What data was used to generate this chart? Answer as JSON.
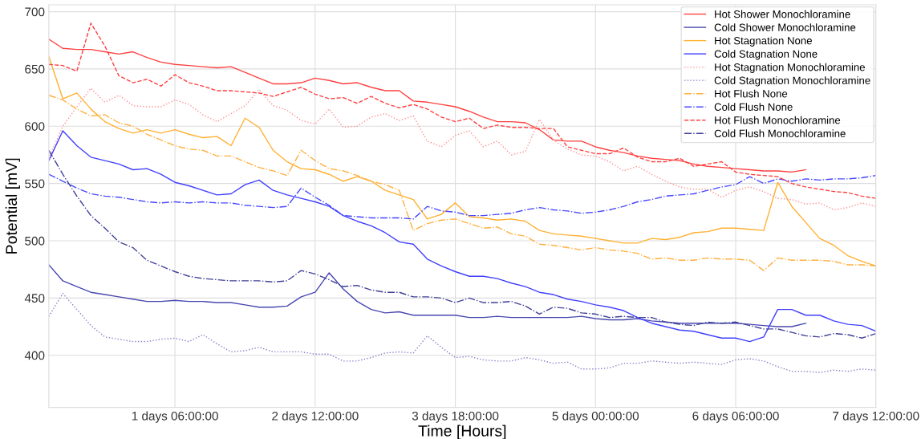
{
  "chart_data": {
    "type": "line",
    "xlabel": "Time [Hours]",
    "ylabel": "Potential [mV]",
    "categories": [
      null,
      null,
      null,
      null,
      null,
      null,
      null,
      null,
      null,
      "1 days 06:00:00",
      null,
      null,
      null,
      null,
      null,
      null,
      null,
      null,
      null,
      "2 days 12:00:00",
      null,
      null,
      null,
      null,
      null,
      null,
      null,
      null,
      null,
      "3 days 18:00:00",
      null,
      null,
      null,
      null,
      null,
      null,
      null,
      null,
      null,
      "5 days 00:00:00",
      null,
      null,
      null,
      null,
      null,
      null,
      null,
      null,
      null,
      "6 days 06:00:00",
      null,
      null,
      null,
      null,
      null,
      null,
      null,
      null,
      null,
      "7 days 12:00:00"
    ],
    "ylim": [
      354.5,
      706
    ],
    "yticks": [
      400,
      450,
      500,
      550,
      600,
      650,
      700
    ],
    "grid": true,
    "legend": "top right",
    "marker": "none",
    "series": [
      {
        "name": "Hot Shower Monochloramine",
        "color": "#ff4040",
        "line_style": "solid",
        "values": [
          676,
          668,
          667,
          667,
          665,
          663,
          665,
          660,
          656,
          654,
          653,
          652,
          651,
          652,
          647,
          642,
          637,
          637,
          638,
          642,
          640,
          637,
          638,
          634,
          631,
          631,
          622,
          621,
          619,
          617,
          613,
          608,
          604,
          604,
          603,
          597,
          588,
          587,
          587,
          582,
          579,
          577,
          574,
          572,
          571,
          570,
          567,
          565,
          564,
          563,
          562,
          561,
          561,
          560,
          562,
          null,
          null,
          null,
          null,
          null
        ]
      },
      {
        "name": "Cold Shower Monochloramine",
        "color": "#4848b0",
        "line_style": "solid",
        "values": [
          479,
          465,
          460,
          455,
          453,
          451,
          449,
          447,
          447,
          448,
          447,
          447,
          446,
          446,
          444,
          442,
          442,
          443,
          451,
          455,
          472,
          458,
          447,
          440,
          437,
          438,
          435,
          435,
          435,
          435,
          433,
          433,
          434,
          433,
          433,
          433,
          433,
          433,
          434,
          432,
          431,
          431,
          432,
          430,
          429,
          428,
          428,
          428,
          428,
          428,
          427,
          426,
          425,
          425,
          428,
          null,
          null,
          null,
          null,
          null
        ]
      },
      {
        "name": "Hot Stagnation None",
        "color": "#ffb030",
        "line_style": "solid",
        "values": [
          661,
          624,
          629,
          615,
          604,
          598,
          594,
          597,
          594,
          597,
          593,
          590,
          591,
          583,
          607,
          599,
          579,
          569,
          563,
          562,
          558,
          552,
          556,
          552,
          544,
          540,
          536,
          519,
          523,
          533,
          521,
          520,
          518,
          519,
          517,
          509,
          506,
          505,
          504,
          502,
          500,
          498,
          498,
          502,
          501,
          503,
          507,
          508,
          511,
          511,
          510,
          509,
          551,
          530,
          516,
          502,
          496,
          487,
          482,
          478
        ]
      },
      {
        "name": "Cold Stagnation None",
        "color": "#4040ff",
        "line_style": "solid",
        "values": [
          570,
          596,
          583,
          573,
          570,
          567,
          562,
          563,
          558,
          551,
          548,
          544,
          540,
          541,
          549,
          553,
          544,
          540,
          537,
          534,
          530,
          522,
          517,
          513,
          507,
          499,
          497,
          484,
          478,
          473,
          469,
          469,
          467,
          463,
          460,
          455,
          453,
          449,
          447,
          444,
          442,
          439,
          433,
          428,
          425,
          422,
          421,
          418,
          415,
          415,
          412,
          416,
          440,
          440,
          435,
          435,
          430,
          427,
          426,
          421
        ]
      },
      {
        "name": "Hot Stagnation Monochloramine",
        "color": "#ff9090",
        "line_style": "dotted",
        "values": [
          572,
          600,
          617,
          633,
          621,
          627,
          618,
          617,
          617,
          623,
          619,
          610,
          604,
          611,
          618,
          632,
          618,
          614,
          605,
          602,
          615,
          599,
          600,
          608,
          611,
          605,
          609,
          587,
          582,
          592,
          596,
          582,
          587,
          575,
          578,
          606,
          588,
          580,
          575,
          574,
          569,
          561,
          565,
          558,
          552,
          547,
          545,
          545,
          538,
          544,
          547,
          543,
          537,
          536,
          532,
          533,
          527,
          529,
          533,
          530
        ]
      },
      {
        "name": "Cold Stagnation Monochloramine",
        "color": "#8080c8",
        "line_style": "dotted",
        "values": [
          434,
          454,
          440,
          426,
          416,
          414,
          412,
          412,
          414,
          415,
          412,
          418,
          410,
          403,
          404,
          407,
          403,
          403,
          403,
          401,
          401,
          395,
          395,
          398,
          402,
          403,
          402,
          417,
          407,
          398,
          399,
          396,
          395,
          395,
          398,
          396,
          393,
          394,
          388,
          388,
          389,
          393,
          393,
          395,
          394,
          393,
          394,
          393,
          392,
          396,
          397,
          395,
          390,
          386,
          386,
          385,
          387,
          386,
          388,
          387
        ]
      },
      {
        "name": "Hot Flush None",
        "color": "#ffb040",
        "line_style": "dashdot",
        "values": [
          627,
          623,
          615,
          609,
          610,
          603,
          600,
          593,
          588,
          583,
          580,
          579,
          574,
          574,
          569,
          564,
          561,
          557,
          579,
          570,
          563,
          561,
          557,
          552,
          549,
          544,
          509,
          515,
          518,
          519,
          515,
          511,
          512,
          506,
          504,
          497,
          496,
          494,
          492,
          494,
          492,
          491,
          489,
          484,
          485,
          483,
          483,
          485,
          484,
          484,
          483,
          474,
          485,
          483,
          483,
          483,
          482,
          479,
          479,
          478
        ]
      },
      {
        "name": "Cold Flush None",
        "color": "#4848ff",
        "line_style": "dashdot",
        "values": [
          558,
          552,
          546,
          541,
          539,
          538,
          536,
          534,
          533,
          534,
          533,
          534,
          533,
          533,
          531,
          530,
          529,
          530,
          546,
          538,
          531,
          522,
          521,
          520,
          520,
          520,
          519,
          530,
          526,
          525,
          522,
          522,
          523,
          524,
          527,
          529,
          527,
          526,
          524,
          525,
          527,
          530,
          534,
          536,
          539,
          540,
          541,
          544,
          547,
          549,
          556,
          550,
          554,
          552,
          554,
          553,
          554,
          554,
          555,
          557
        ]
      },
      {
        "name": "Hot Flush Monochloramine",
        "color": "#ff4040",
        "line_style": "dashed",
        "values": [
          654,
          653,
          648,
          690,
          670,
          644,
          638,
          641,
          635,
          645,
          638,
          635,
          631,
          631,
          630,
          629,
          626,
          630,
          634,
          628,
          624,
          625,
          620,
          626,
          620,
          616,
          619,
          615,
          608,
          604,
          607,
          598,
          601,
          599,
          599,
          598,
          598,
          582,
          579,
          576,
          576,
          581,
          573,
          569,
          569,
          572,
          565,
          567,
          569,
          560,
          558,
          557,
          556,
          550,
          547,
          545,
          543,
          542,
          539,
          537
        ]
      },
      {
        "name": "Cold Flush Monochloramine",
        "color": "#404098",
        "line_style": "dashdot",
        "values": [
          579,
          558,
          539,
          522,
          511,
          499,
          494,
          483,
          478,
          473,
          469,
          467,
          466,
          465,
          465,
          465,
          464,
          465,
          474,
          471,
          466,
          460,
          461,
          457,
          455,
          455,
          451,
          451,
          450,
          446,
          450,
          446,
          446,
          447,
          443,
          436,
          442,
          441,
          437,
          436,
          433,
          434,
          433,
          433,
          429,
          427,
          426,
          429,
          428,
          429,
          426,
          423,
          423,
          420,
          417,
          416,
          419,
          418,
          415,
          419
        ]
      }
    ]
  }
}
